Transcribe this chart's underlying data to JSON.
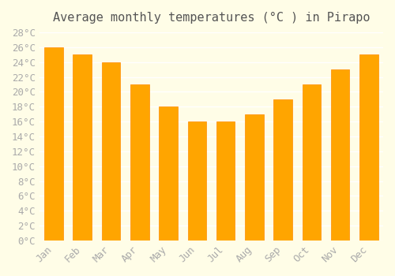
{
  "title": "Average monthly temperatures (°C ) in Pirapo",
  "months": [
    "Jan",
    "Feb",
    "Mar",
    "Apr",
    "May",
    "Jun",
    "Jul",
    "Aug",
    "Sep",
    "Oct",
    "Nov",
    "Dec"
  ],
  "values": [
    26,
    25,
    24,
    21,
    18,
    16,
    16,
    17,
    19,
    21,
    23,
    25
  ],
  "bar_color": "#FFA500",
  "bar_edge_color": "#FF8C00",
  "background_color": "#FFFDE7",
  "grid_color": "#FFFFFF",
  "ylim": [
    0,
    28
  ],
  "ytick_step": 2,
  "title_fontsize": 11,
  "tick_fontsize": 9,
  "tick_color": "#AAAAAA",
  "axis_color": "#CCCCCC"
}
